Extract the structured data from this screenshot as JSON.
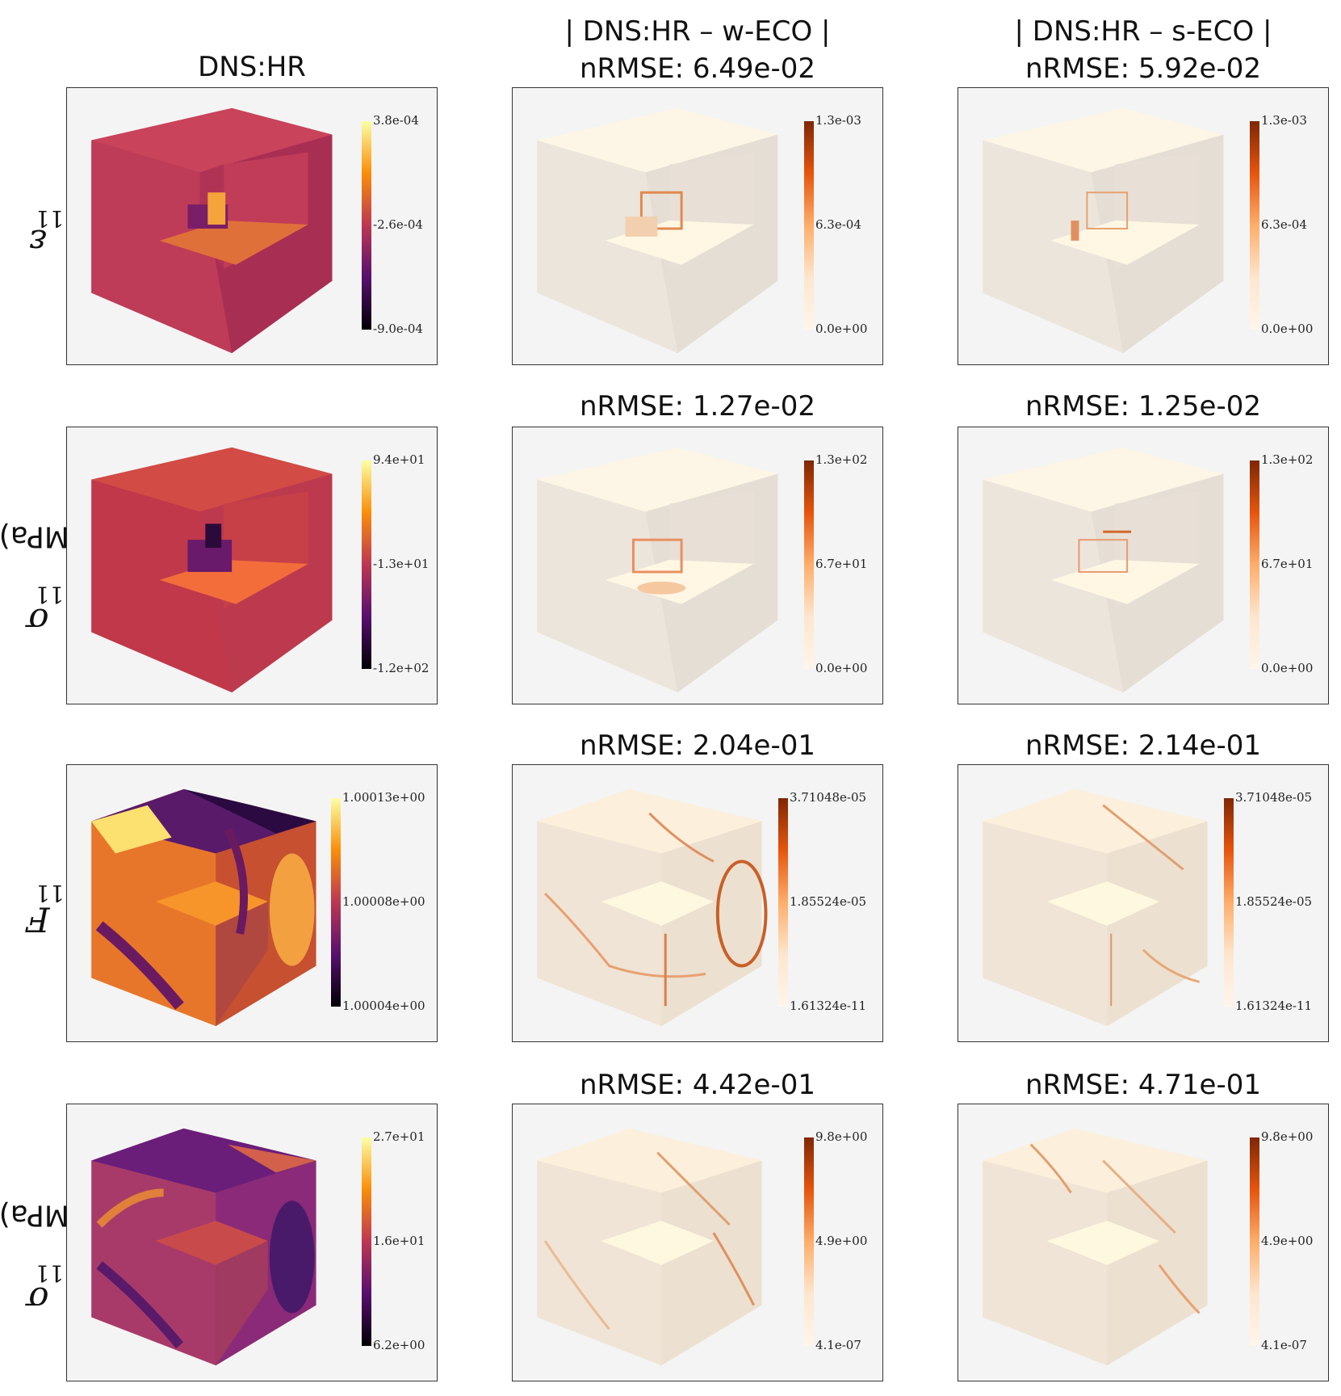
{
  "columns": [
    {
      "title_line1": "DNS:HR",
      "title_line2": ""
    },
    {
      "title_line1": "| DNS:HR – w-ECO |",
      "title_line2": "nRMSE: 6.49e-02"
    },
    {
      "title_line1": "| DNS:HR – s-ECO |",
      "title_line2": "nRMSE: 5.92e-02"
    }
  ],
  "rows": [
    {
      "label_symbol": "ε",
      "label_sub": "11",
      "label_unit": "",
      "nrmse": [
        "",
        ""
      ],
      "colorbars": [
        {
          "top": "3.8e-04",
          "mid": "-2.6e-04",
          "bottom": "-9.0e-04",
          "cmap": "inferno"
        },
        {
          "top": "1.3e-03",
          "mid": "6.3e-04",
          "bottom": "0.0e+00",
          "cmap": "oranges"
        },
        {
          "top": "1.3e-03",
          "mid": "6.3e-04",
          "bottom": "0.0e+00",
          "cmap": "oranges"
        }
      ]
    },
    {
      "label_symbol": "σ",
      "label_sub": "11",
      "label_unit": "(MPa)",
      "nrmse": [
        "nRMSE: 1.27e-02",
        "nRMSE: 1.25e-02"
      ],
      "colorbars": [
        {
          "top": "9.4e+01",
          "mid": "-1.3e+01",
          "bottom": "-1.2e+02",
          "cmap": "inferno"
        },
        {
          "top": "1.3e+02",
          "mid": "6.7e+01",
          "bottom": "0.0e+00",
          "cmap": "oranges"
        },
        {
          "top": "1.3e+02",
          "mid": "6.7e+01",
          "bottom": "0.0e+00",
          "cmap": "oranges"
        }
      ]
    },
    {
      "label_symbol": "F",
      "label_sub": "11",
      "label_unit": "",
      "nrmse": [
        "nRMSE: 2.04e-01",
        "nRMSE: 2.14e-01"
      ],
      "colorbars": [
        {
          "top": "1.00013e+00",
          "mid": "1.00008e+00",
          "bottom": "1.00004e+00",
          "cmap": "inferno"
        },
        {
          "top": "3.71048e-05",
          "mid": "1.85524e-05",
          "bottom": "1.61324e-11",
          "cmap": "oranges"
        },
        {
          "top": "3.71048e-05",
          "mid": "1.85524e-05",
          "bottom": "1.61324e-11",
          "cmap": "oranges"
        }
      ]
    },
    {
      "label_symbol": "σ",
      "label_sub": "11",
      "label_unit": "(MPa)",
      "nrmse": [
        "nRMSE: 4.42e-01",
        "nRMSE: 4.71e-01"
      ],
      "colorbars": [
        {
          "top": "2.7e+01",
          "mid": "1.6e+01",
          "bottom": "6.2e+00",
          "cmap": "inferno"
        },
        {
          "top": "9.8e+00",
          "mid": "4.9e+00",
          "bottom": "4.1e-07",
          "cmap": "oranges"
        },
        {
          "top": "9.8e+00",
          "mid": "4.9e+00",
          "bottom": "4.1e-07",
          "cmap": "oranges"
        }
      ]
    }
  ],
  "colors": {
    "inferno": [
      "#fcffa4",
      "#f98e09",
      "#bc3754",
      "#57106e",
      "#000004"
    ],
    "oranges": [
      "#7f2704",
      "#e6550d",
      "#fdae6b",
      "#fee6ce",
      "#fff5eb"
    ]
  }
}
